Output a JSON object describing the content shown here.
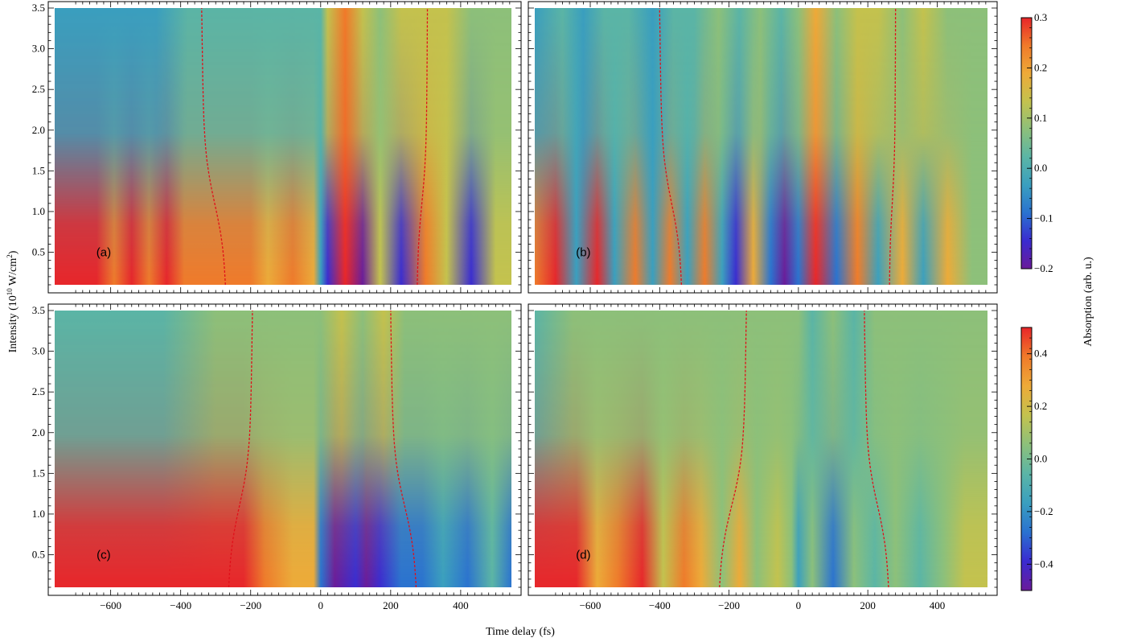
{
  "axes": {
    "xlabel": "Time delay (fs)",
    "ylabel_prefix": "Intensity (10",
    "ylabel_exp": "10",
    "ylabel_unit": " W/cm",
    "ylabel_unit_exp": "2",
    "ylabel_close": ")",
    "colorbar_label": "Absorption (arb. u.)"
  },
  "chart_data": [
    {
      "type": "heatmap",
      "panel": "(a)",
      "x_range": [
        -760,
        545
      ],
      "y_range": [
        0.1,
        3.5
      ],
      "x_ticks": [
        -600,
        -400,
        -200,
        0,
        200,
        400
      ],
      "y_ticks": [
        0.5,
        1.0,
        1.5,
        2.0,
        2.5,
        3.0,
        3.5
      ],
      "color_range": [
        -0.2,
        0.3
      ],
      "red_dashed_curves": [
        {
          "x_at_low_intensity": -270,
          "x_at_high_intensity": -340
        },
        {
          "x_at_low_intensity": 275,
          "x_at_high_intensity": 305
        }
      ]
    },
    {
      "type": "heatmap",
      "panel": "(b)",
      "x_range": [
        -760,
        545
      ],
      "y_range": [
        0.1,
        3.5
      ],
      "x_ticks": [
        -600,
        -400,
        -200,
        0,
        200,
        400
      ],
      "y_ticks": [
        0.5,
        1.0,
        1.5,
        2.0,
        2.5,
        3.0,
        3.5
      ],
      "color_range": [
        -0.2,
        0.3
      ],
      "red_dashed_curves": [
        {
          "x_at_low_intensity": -335,
          "x_at_high_intensity": -400
        },
        {
          "x_at_low_intensity": 262,
          "x_at_high_intensity": 280
        }
      ]
    },
    {
      "type": "heatmap",
      "panel": "(c)",
      "x_range": [
        -760,
        545
      ],
      "y_range": [
        0.1,
        3.5
      ],
      "x_ticks": [
        -600,
        -400,
        -200,
        0,
        200,
        400
      ],
      "y_ticks": [
        0.5,
        1.0,
        1.5,
        2.0,
        2.5,
        3.0,
        3.5
      ],
      "color_range": [
        -0.5,
        0.5
      ],
      "red_dashed_curves": [
        {
          "x_at_low_intensity": -265,
          "x_at_high_intensity": -195
        },
        {
          "x_at_low_intensity": 275,
          "x_at_high_intensity": 200
        }
      ]
    },
    {
      "type": "heatmap",
      "panel": "(d)",
      "x_range": [
        -760,
        545
      ],
      "y_range": [
        0.1,
        3.5
      ],
      "x_ticks": [
        -600,
        -400,
        -200,
        0,
        200,
        400
      ],
      "y_ticks": [
        0.5,
        1.0,
        1.5,
        2.0,
        2.5,
        3.0,
        3.5
      ],
      "color_range": [
        -0.5,
        0.5
      ],
      "red_dashed_curves": [
        {
          "x_at_low_intensity": -230,
          "x_at_high_intensity": -150
        },
        {
          "x_at_low_intensity": 262,
          "x_at_high_intensity": 190
        }
      ]
    }
  ],
  "colorbars": [
    {
      "ticks": [
        0.3,
        0.2,
        0.1,
        0.0,
        -0.1,
        -0.2
      ],
      "tick_labels": [
        "0.3",
        "0.2",
        "0.1",
        "0.0",
        "−0.1",
        "−0.2"
      ],
      "range": [
        -0.2,
        0.3
      ]
    },
    {
      "ticks": [
        0.4,
        0.2,
        0.0,
        -0.2,
        -0.4
      ],
      "tick_labels": [
        "0.4",
        "0.2",
        "0.0",
        "−0.2",
        "−0.4"
      ],
      "range": [
        -0.5,
        0.5
      ]
    }
  ],
  "colors": {
    "scale": [
      "#6a1b9a",
      "#3a2bd0",
      "#2a72d0",
      "#3a9fbf",
      "#5bb5a6",
      "#8dc07a",
      "#c4c24e",
      "#eeaa38",
      "#f07a2a",
      "#e8262a"
    ],
    "dashed_curve": "#e0101a",
    "frame": "#000000",
    "panel_background": "#ffffff"
  }
}
